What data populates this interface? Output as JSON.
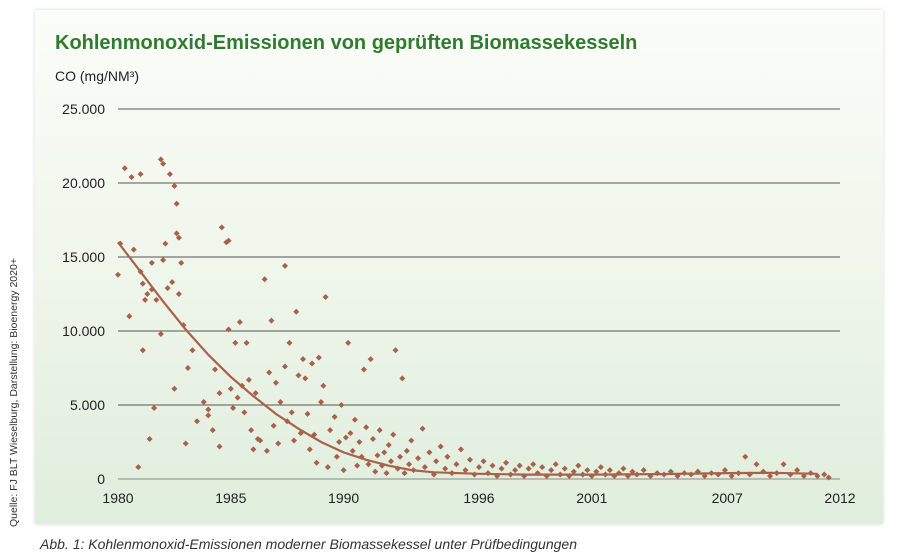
{
  "source_note": "Quelle: FJ BLT Wieselburg, Darstellung: Bioenergy 2020+",
  "caption": "Abb. 1: Kohlenmonoxid-Emissionen moderner Biomassekessel unter Prüfbedingungen",
  "chart_data": {
    "type": "scatter",
    "title": "Kohlenmonoxid-Emissionen von geprüften Biomassekesseln",
    "ylabel": "CO (mg/NM³)",
    "xlabel": "",
    "x_ticks": [
      "1980",
      "1985",
      "1990",
      "1996",
      "2001",
      "2007",
      "2012"
    ],
    "x_tick_values": [
      1980,
      1985,
      1990,
      1996,
      2001,
      2007,
      2012
    ],
    "y_ticks": [
      "25.000",
      "20.000",
      "15.000",
      "10.000",
      "5.000",
      "0"
    ],
    "y_tick_values": [
      25000,
      20000,
      15000,
      10000,
      5000,
      0
    ],
    "xlim": [
      1980,
      2012
    ],
    "ylim": [
      0,
      25000
    ],
    "grid": "horizontal",
    "point_color": "#a9614a",
    "trend_color": "#a9614a",
    "points": [
      [
        1980.0,
        13800
      ],
      [
        1980.1,
        15900
      ],
      [
        1980.3,
        21000
      ],
      [
        1980.5,
        11000
      ],
      [
        1980.6,
        20400
      ],
      [
        1980.7,
        15500
      ],
      [
        1980.9,
        800
      ],
      [
        1981.0,
        20600
      ],
      [
        1981.0,
        14000
      ],
      [
        1981.1,
        13200
      ],
      [
        1981.1,
        8700
      ],
      [
        1981.2,
        12100
      ],
      [
        1981.3,
        12500
      ],
      [
        1981.4,
        2700
      ],
      [
        1981.5,
        12800
      ],
      [
        1981.5,
        14600
      ],
      [
        1981.6,
        4800
      ],
      [
        1981.7,
        12100
      ],
      [
        1981.9,
        21600
      ],
      [
        1981.9,
        9800
      ],
      [
        1982.0,
        21300
      ],
      [
        1982.0,
        14800
      ],
      [
        1982.1,
        15900
      ],
      [
        1982.2,
        12900
      ],
      [
        1982.3,
        20600
      ],
      [
        1982.4,
        13300
      ],
      [
        1982.5,
        19800
      ],
      [
        1982.5,
        6100
      ],
      [
        1982.6,
        16600
      ],
      [
        1982.6,
        18600
      ],
      [
        1982.7,
        16300
      ],
      [
        1982.7,
        12500
      ],
      [
        1982.8,
        14600
      ],
      [
        1982.9,
        10400
      ],
      [
        1983.0,
        2400
      ],
      [
        1983.1,
        7500
      ],
      [
        1983.3,
        8700
      ],
      [
        1983.5,
        3900
      ],
      [
        1983.8,
        5200
      ],
      [
        1984.0,
        4700
      ],
      [
        1984.0,
        4300
      ],
      [
        1984.2,
        3300
      ],
      [
        1984.3,
        7400
      ],
      [
        1984.5,
        5800
      ],
      [
        1984.5,
        2200
      ],
      [
        1984.6,
        17000
      ],
      [
        1984.8,
        16000
      ],
      [
        1984.9,
        10100
      ],
      [
        1984.9,
        16100
      ],
      [
        1985.0,
        6100
      ],
      [
        1985.1,
        4800
      ],
      [
        1985.2,
        9200
      ],
      [
        1985.3,
        5500
      ],
      [
        1985.4,
        10600
      ],
      [
        1985.5,
        6300
      ],
      [
        1985.6,
        4500
      ],
      [
        1985.7,
        9200
      ],
      [
        1985.8,
        6700
      ],
      [
        1985.9,
        3300
      ],
      [
        1986.0,
        2000
      ],
      [
        1986.1,
        5800
      ],
      [
        1986.2,
        2700
      ],
      [
        1986.3,
        2600
      ],
      [
        1986.5,
        13500
      ],
      [
        1986.6,
        1900
      ],
      [
        1986.7,
        7200
      ],
      [
        1986.8,
        10700
      ],
      [
        1986.9,
        3600
      ],
      [
        1987.0,
        6500
      ],
      [
        1987.1,
        2400
      ],
      [
        1987.2,
        5200
      ],
      [
        1987.4,
        14400
      ],
      [
        1987.4,
        7600
      ],
      [
        1987.5,
        3900
      ],
      [
        1987.6,
        9200
      ],
      [
        1987.7,
        4500
      ],
      [
        1987.8,
        2600
      ],
      [
        1987.9,
        11300
      ],
      [
        1988.0,
        7000
      ],
      [
        1988.1,
        3100
      ],
      [
        1988.2,
        8100
      ],
      [
        1988.3,
        6800
      ],
      [
        1988.4,
        4400
      ],
      [
        1988.5,
        2000
      ],
      [
        1988.6,
        7800
      ],
      [
        1988.7,
        3000
      ],
      [
        1988.8,
        1100
      ],
      [
        1988.9,
        8200
      ],
      [
        1989.0,
        5200
      ],
      [
        1989.1,
        6300
      ],
      [
        1989.2,
        12300
      ],
      [
        1989.3,
        800
      ],
      [
        1989.4,
        3300
      ],
      [
        1989.6,
        4200
      ],
      [
        1989.7,
        1500
      ],
      [
        1989.8,
        2500
      ],
      [
        1989.9,
        5000
      ],
      [
        1990.0,
        600
      ],
      [
        1990.1,
        2800
      ],
      [
        1990.2,
        9200
      ],
      [
        1990.3,
        3100
      ],
      [
        1990.4,
        1900
      ],
      [
        1990.5,
        4000
      ],
      [
        1990.6,
        900
      ],
      [
        1990.7,
        2500
      ],
      [
        1990.8,
        1500
      ],
      [
        1990.9,
        7400
      ],
      [
        1991.0,
        3500
      ],
      [
        1991.1,
        1000
      ],
      [
        1991.2,
        8100
      ],
      [
        1991.3,
        2700
      ],
      [
        1991.4,
        500
      ],
      [
        1991.5,
        1600
      ],
      [
        1991.6,
        3300
      ],
      [
        1991.7,
        900
      ],
      [
        1991.8,
        1800
      ],
      [
        1991.9,
        400
      ],
      [
        1992.0,
        2300
      ],
      [
        1992.1,
        1200
      ],
      [
        1992.2,
        3000
      ],
      [
        1992.3,
        8700
      ],
      [
        1992.4,
        700
      ],
      [
        1992.5,
        1500
      ],
      [
        1992.6,
        6800
      ],
      [
        1992.7,
        400
      ],
      [
        1992.8,
        1900
      ],
      [
        1992.9,
        1000
      ],
      [
        1993.0,
        2600
      ],
      [
        1993.1,
        600
      ],
      [
        1993.3,
        1400
      ],
      [
        1993.5,
        3400
      ],
      [
        1993.6,
        800
      ],
      [
        1993.8,
        1800
      ],
      [
        1994.0,
        300
      ],
      [
        1994.1,
        1200
      ],
      [
        1994.3,
        2200
      ],
      [
        1994.5,
        700
      ],
      [
        1994.6,
        1500
      ],
      [
        1994.8,
        400
      ],
      [
        1995.0,
        1000
      ],
      [
        1995.2,
        2000
      ],
      [
        1995.4,
        600
      ],
      [
        1995.6,
        1300
      ],
      [
        1995.8,
        300
      ],
      [
        1996.0,
        800
      ],
      [
        1996.2,
        1200
      ],
      [
        1996.4,
        400
      ],
      [
        1996.6,
        900
      ],
      [
        1996.8,
        200
      ],
      [
        1997.0,
        700
      ],
      [
        1997.2,
        1100
      ],
      [
        1997.4,
        300
      ],
      [
        1997.6,
        600
      ],
      [
        1997.8,
        900
      ],
      [
        1998.0,
        200
      ],
      [
        1998.2,
        700
      ],
      [
        1998.4,
        1000
      ],
      [
        1998.6,
        400
      ],
      [
        1998.8,
        800
      ],
      [
        1999.0,
        200
      ],
      [
        1999.2,
        600
      ],
      [
        1999.4,
        1000
      ],
      [
        1999.6,
        300
      ],
      [
        1999.8,
        700
      ],
      [
        2000.0,
        200
      ],
      [
        2000.2,
        500
      ],
      [
        2000.4,
        900
      ],
      [
        2000.6,
        300
      ],
      [
        2000.8,
        600
      ],
      [
        2001.0,
        200
      ],
      [
        2001.2,
        500
      ],
      [
        2001.4,
        800
      ],
      [
        2001.6,
        300
      ],
      [
        2001.8,
        600
      ],
      [
        2002.0,
        200
      ],
      [
        2002.2,
        400
      ],
      [
        2002.4,
        700
      ],
      [
        2002.6,
        200
      ],
      [
        2002.8,
        500
      ],
      [
        2003.0,
        300
      ],
      [
        2003.3,
        600
      ],
      [
        2003.6,
        200
      ],
      [
        2003.9,
        400
      ],
      [
        2004.2,
        300
      ],
      [
        2004.5,
        500
      ],
      [
        2004.8,
        200
      ],
      [
        2005.1,
        400
      ],
      [
        2005.4,
        300
      ],
      [
        2005.7,
        500
      ],
      [
        2006.0,
        200
      ],
      [
        2006.3,
        400
      ],
      [
        2006.6,
        300
      ],
      [
        2006.9,
        600
      ],
      [
        2007.2,
        200
      ],
      [
        2007.5,
        400
      ],
      [
        2007.8,
        1500
      ],
      [
        2008.0,
        300
      ],
      [
        2008.3,
        1000
      ],
      [
        2008.6,
        500
      ],
      [
        2008.9,
        200
      ],
      [
        2009.2,
        400
      ],
      [
        2009.5,
        1000
      ],
      [
        2009.8,
        300
      ],
      [
        2010.1,
        600
      ],
      [
        2010.4,
        200
      ],
      [
        2010.7,
        400
      ],
      [
        2011.0,
        200
      ],
      [
        2011.3,
        300
      ],
      [
        2011.5,
        100
      ]
    ],
    "trend": [
      [
        1980,
        16000
      ],
      [
        1981,
        14000
      ],
      [
        1982,
        12000
      ],
      [
        1983,
        10100
      ],
      [
        1984,
        8400
      ],
      [
        1985,
        6900
      ],
      [
        1986,
        5600
      ],
      [
        1987,
        4400
      ],
      [
        1988,
        3400
      ],
      [
        1989,
        2500
      ],
      [
        1990,
        1800
      ],
      [
        1991,
        1300
      ],
      [
        1992,
        900
      ],
      [
        1993,
        600
      ],
      [
        1994,
        450
      ],
      [
        1996,
        350
      ],
      [
        1998,
        300
      ],
      [
        2001,
        300
      ],
      [
        2004,
        330
      ],
      [
        2007,
        400
      ],
      [
        2009,
        420
      ],
      [
        2011,
        350
      ]
    ]
  }
}
